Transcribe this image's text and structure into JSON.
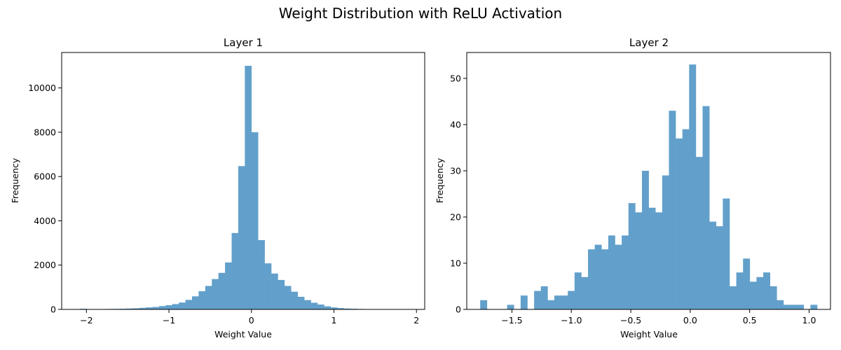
{
  "figure": {
    "title": "Weight Distribution with ReLU Activation"
  },
  "colors": {
    "bar": "#62a0cb"
  },
  "chart_data": [
    {
      "type": "bar",
      "title": "Layer 1",
      "xlabel": "Weight Value",
      "ylabel": "Frequency",
      "xlim": [
        -2.3,
        2.1
      ],
      "ylim": [
        0,
        11600
      ],
      "xticks": [
        -2,
        -1,
        0,
        1,
        2
      ],
      "xtick_labels": [
        "−2",
        "−1",
        "0",
        "1",
        "2"
      ],
      "yticks": [
        0,
        2000,
        4000,
        6000,
        8000,
        10000
      ],
      "ytick_labels": [
        "0",
        "2000",
        "4000",
        "6000",
        "8000",
        "10000"
      ],
      "bin_start": -2.08,
      "bin_width": 0.08,
      "values": [
        30,
        5,
        5,
        10,
        20,
        25,
        30,
        40,
        50,
        70,
        90,
        110,
        150,
        190,
        240,
        310,
        430,
        590,
        820,
        1060,
        1370,
        1650,
        2120,
        3450,
        6470,
        11000,
        8000,
        3130,
        2080,
        1620,
        1330,
        1060,
        800,
        570,
        420,
        300,
        220,
        140,
        90,
        60,
        40,
        30,
        20,
        15,
        10,
        5,
        3,
        2,
        2,
        1
      ]
    },
    {
      "type": "bar",
      "title": "Layer 2",
      "xlabel": "Weight Value",
      "ylabel": "Frequency",
      "xlim": [
        -1.88,
        1.18
      ],
      "ylim": [
        0,
        55.6
      ],
      "xticks": [
        -1.5,
        -1.0,
        -0.5,
        0.0,
        0.5,
        1.0
      ],
      "xtick_labels": [
        "−1.5",
        "−1.0",
        "−0.5",
        "0.0",
        "0.5",
        "1.0"
      ],
      "yticks": [
        0,
        10,
        20,
        30,
        40,
        50
      ],
      "ytick_labels": [
        "0",
        "10",
        "20",
        "30",
        "40",
        "50"
      ],
      "bin_start": -1.767,
      "bin_width": 0.0567,
      "values": [
        2,
        0,
        0,
        0,
        1,
        0,
        3,
        0,
        4,
        5,
        2,
        3,
        3,
        4,
        8,
        7,
        13,
        14,
        13,
        16,
        14,
        16,
        23,
        21,
        30,
        22,
        21,
        29,
        43,
        37,
        39,
        53,
        33,
        44,
        19,
        18,
        24,
        5,
        8,
        11,
        6,
        7,
        8,
        5,
        2,
        1,
        1,
        1,
        0,
        1
      ]
    }
  ]
}
